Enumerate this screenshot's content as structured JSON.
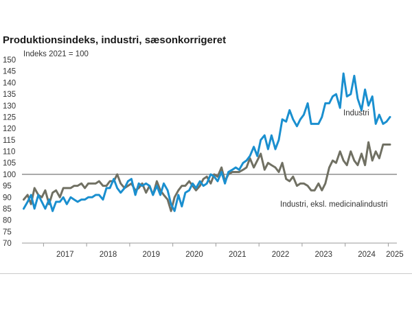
{
  "chart_data": {
    "type": "line",
    "title": "Produktionsindeks, industri, sæsonkorrigeret",
    "ylabel": "Indeks 2021 = 100",
    "xlabel": "",
    "ylim": [
      70,
      150
    ],
    "yticks": [
      150,
      145,
      140,
      135,
      130,
      125,
      120,
      115,
      110,
      105,
      100,
      95,
      90,
      85,
      80,
      75,
      70
    ],
    "xrange": [
      2016.5,
      2025.2
    ],
    "x_tick_labels": [
      "2017",
      "2018",
      "2019",
      "2020",
      "2021",
      "2022",
      "2023",
      "2024",
      "2025"
    ],
    "reference_line": 100,
    "grid": false,
    "series": [
      {
        "name": "Industri",
        "color": "#1a8fcf",
        "x": [
          2016.54,
          2016.63,
          2016.71,
          2016.79,
          2016.88,
          2016.96,
          2017.04,
          2017.13,
          2017.21,
          2017.29,
          2017.38,
          2017.46,
          2017.54,
          2017.63,
          2017.71,
          2017.79,
          2017.88,
          2017.96,
          2018.04,
          2018.13,
          2018.21,
          2018.29,
          2018.38,
          2018.46,
          2018.54,
          2018.63,
          2018.71,
          2018.79,
          2018.88,
          2018.96,
          2019.04,
          2019.13,
          2019.21,
          2019.29,
          2019.38,
          2019.46,
          2019.54,
          2019.63,
          2019.71,
          2019.79,
          2019.88,
          2019.96,
          2020.04,
          2020.13,
          2020.21,
          2020.29,
          2020.38,
          2020.46,
          2020.54,
          2020.63,
          2020.71,
          2020.79,
          2020.88,
          2020.96,
          2021.04,
          2021.13,
          2021.21,
          2021.29,
          2021.38,
          2021.46,
          2021.54,
          2021.63,
          2021.71,
          2021.79,
          2021.88,
          2021.96,
          2022.04,
          2022.13,
          2022.21,
          2022.29,
          2022.38,
          2022.46,
          2022.54,
          2022.63,
          2022.71,
          2022.79,
          2022.88,
          2022.96,
          2023.04,
          2023.13,
          2023.21,
          2023.29,
          2023.38,
          2023.46,
          2023.54,
          2023.63,
          2023.71,
          2023.79,
          2023.88,
          2023.96,
          2024.04,
          2024.13,
          2024.21,
          2024.29,
          2024.38,
          2024.46,
          2024.54,
          2024.63,
          2024.71,
          2024.79,
          2024.88,
          2024.96,
          2025.04
        ],
        "values": [
          85,
          88,
          91,
          85,
          91,
          88,
          85,
          89,
          84,
          88,
          88,
          90,
          87,
          90,
          89,
          88,
          89,
          89,
          90,
          90,
          91,
          91,
          89,
          94,
          94,
          98,
          94,
          92,
          94,
          97,
          98,
          91,
          96,
          95,
          96,
          95,
          91,
          95,
          91,
          96,
          93,
          87,
          84,
          91,
          86,
          92,
          93,
          96,
          94,
          97,
          95,
          96,
          100,
          99,
          97,
          101,
          96,
          101,
          102,
          103,
          102,
          105,
          106,
          108,
          112,
          108,
          115,
          117,
          111,
          117,
          111,
          115,
          124,
          123,
          128,
          124,
          121,
          124,
          126,
          131,
          122,
          122,
          122,
          125,
          131,
          131,
          134,
          135,
          129,
          144,
          134,
          135,
          143,
          133,
          128,
          137,
          130,
          134,
          122,
          126,
          122,
          123,
          125
        ]
      },
      {
        "name": "Industri, eksl. medicinalindustri",
        "color": "#707063",
        "x": [
          2016.54,
          2016.63,
          2016.71,
          2016.79,
          2016.88,
          2016.96,
          2017.04,
          2017.13,
          2017.21,
          2017.29,
          2017.38,
          2017.46,
          2017.54,
          2017.63,
          2017.71,
          2017.79,
          2017.88,
          2017.96,
          2018.04,
          2018.13,
          2018.21,
          2018.29,
          2018.38,
          2018.46,
          2018.54,
          2018.63,
          2018.71,
          2018.79,
          2018.88,
          2018.96,
          2019.04,
          2019.13,
          2019.21,
          2019.29,
          2019.38,
          2019.46,
          2019.54,
          2019.63,
          2019.71,
          2019.79,
          2019.88,
          2019.96,
          2020.04,
          2020.13,
          2020.21,
          2020.29,
          2020.38,
          2020.46,
          2020.54,
          2020.63,
          2020.71,
          2020.79,
          2020.88,
          2020.96,
          2021.04,
          2021.13,
          2021.21,
          2021.29,
          2021.38,
          2021.46,
          2021.54,
          2021.63,
          2021.71,
          2021.79,
          2021.88,
          2021.96,
          2022.04,
          2022.13,
          2022.21,
          2022.29,
          2022.38,
          2022.46,
          2022.54,
          2022.63,
          2022.71,
          2022.79,
          2022.88,
          2022.96,
          2023.04,
          2023.13,
          2023.21,
          2023.29,
          2023.38,
          2023.46,
          2023.54,
          2023.63,
          2023.71,
          2023.79,
          2023.88,
          2023.96,
          2024.04,
          2024.13,
          2024.21,
          2024.29,
          2024.38,
          2024.46,
          2024.54,
          2024.63,
          2024.71,
          2024.79,
          2024.88,
          2024.96,
          2025.04
        ],
        "values": [
          89,
          91,
          87,
          94,
          91,
          90,
          93,
          87,
          92,
          93,
          90,
          94,
          94,
          94,
          95,
          95,
          96,
          94,
          96,
          96,
          96,
          97,
          95,
          95,
          97,
          97,
          100,
          96,
          94,
          95,
          96,
          93,
          94,
          96,
          92,
          95,
          91,
          97,
          93,
          91,
          89,
          84,
          90,
          93,
          95,
          95,
          97,
          95,
          93,
          95,
          98,
          99,
          96,
          100,
          99,
          103,
          97,
          100,
          101,
          101,
          101,
          102,
          103,
          107,
          103,
          106,
          109,
          102,
          105,
          104,
          103,
          101,
          105,
          98,
          97,
          99,
          95,
          96,
          96,
          95,
          93,
          93,
          96,
          93,
          96,
          103,
          106,
          105,
          110,
          106,
          104,
          110,
          106,
          104,
          109,
          104,
          114,
          106,
          110,
          107,
          113,
          113,
          113
        ]
      }
    ]
  }
}
